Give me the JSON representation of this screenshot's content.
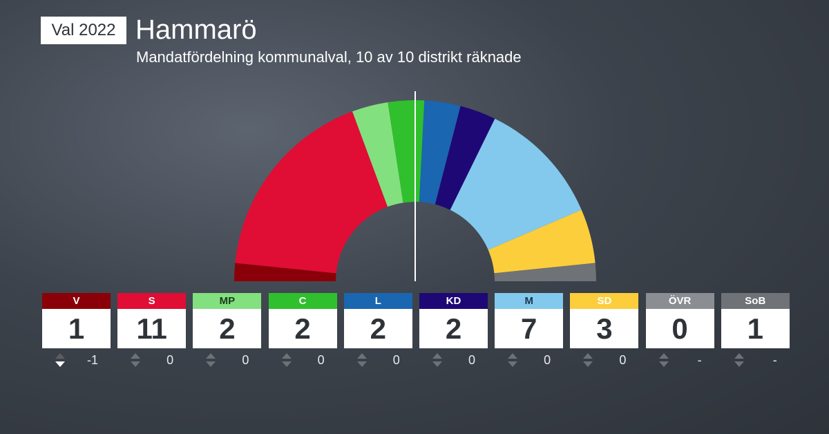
{
  "header": {
    "year_badge": "Val 2022",
    "title": "Hammarö",
    "subtitle": "Mandatfördelning kommunalval, 10 av 10 distrikt räknade"
  },
  "chart_data": {
    "type": "hemicycle",
    "total_seats": 31,
    "majority_line": true,
    "parties": [
      {
        "name": "V",
        "seats": 1,
        "change": "-1",
        "direction": "down",
        "color": "#8b0008",
        "header_text_color": "#ffffff"
      },
      {
        "name": "S",
        "seats": 11,
        "change": "0",
        "direction": "none",
        "color": "#e00d35",
        "header_text_color": "#ffffff"
      },
      {
        "name": "MP",
        "seats": 2,
        "change": "0",
        "direction": "none",
        "color": "#83e07f",
        "header_text_color": "#1a3a1a"
      },
      {
        "name": "C",
        "seats": 2,
        "change": "0",
        "direction": "none",
        "color": "#30c02d",
        "header_text_color": "#ffffff"
      },
      {
        "name": "L",
        "seats": 2,
        "change": "0",
        "direction": "none",
        "color": "#1a66b0",
        "header_text_color": "#ffffff"
      },
      {
        "name": "KD",
        "seats": 2,
        "change": "0",
        "direction": "none",
        "color": "#1e0875",
        "header_text_color": "#ffffff"
      },
      {
        "name": "M",
        "seats": 7,
        "change": "0",
        "direction": "none",
        "color": "#83c9ed",
        "header_text_color": "#1a3550"
      },
      {
        "name": "SD",
        "seats": 3,
        "change": "0",
        "direction": "none",
        "color": "#fcce3c",
        "header_text_color": "#ffffff"
      },
      {
        "name": "ÖVR",
        "seats": 0,
        "change": "-",
        "direction": "none",
        "color": "#8a8d92",
        "header_text_color": "#ffffff"
      },
      {
        "name": "SoB",
        "seats": 1,
        "change": "-",
        "direction": "none",
        "color": "#6f7276",
        "header_text_color": "#ffffff"
      }
    ]
  }
}
